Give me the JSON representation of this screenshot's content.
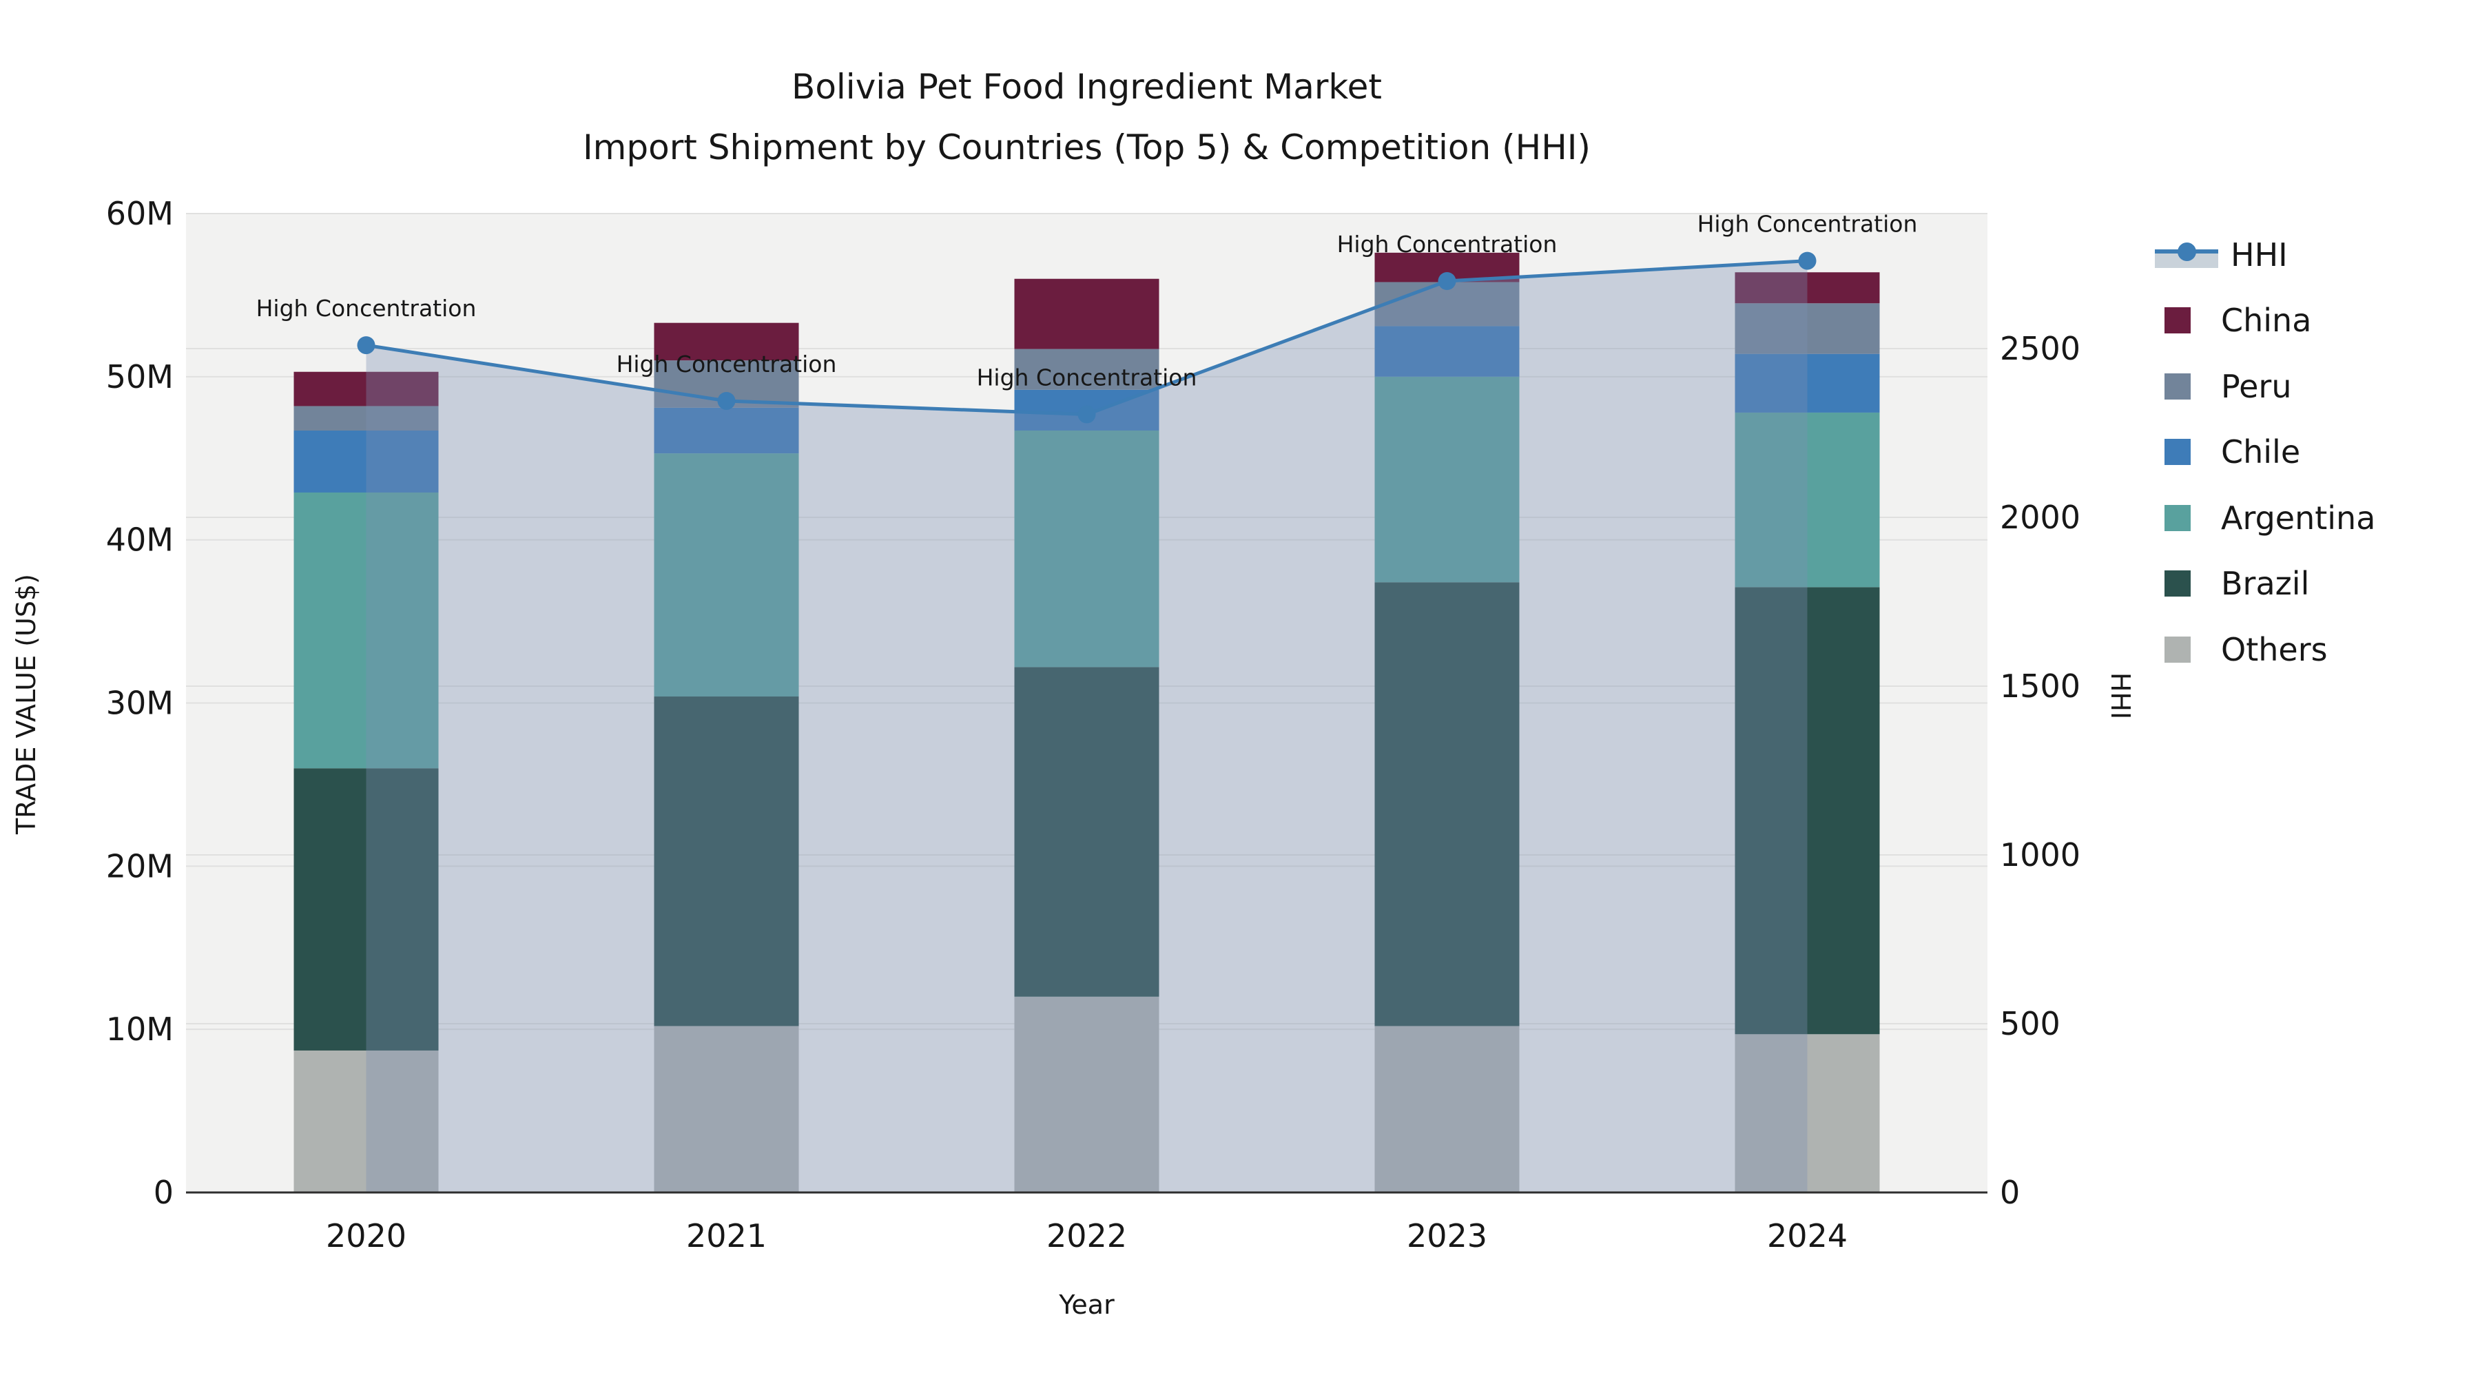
{
  "title": {
    "line1": "Bolivia Pet Food Ingredient Market",
    "line2": "Import Shipment by Countries (Top 5) & Competition (HHI)"
  },
  "axes": {
    "left_title": "TRADE VALUE (US$)",
    "left_tick_labels": [
      "0",
      "10M",
      "20M",
      "30M",
      "40M",
      "50M",
      "60M"
    ],
    "left_tick_values_musd": [
      0,
      10,
      20,
      30,
      40,
      50,
      60
    ],
    "left_max_musd": 60,
    "right_title": "HHI",
    "right_tick_labels": [
      "0",
      "500",
      "1000",
      "1500",
      "2000",
      "2500"
    ],
    "right_tick_values": [
      0,
      500,
      1000,
      1500,
      2000,
      2500
    ],
    "right_max": 2900,
    "x_title": "Year"
  },
  "annotation_label": "High Concentration",
  "legend": [
    {
      "label": "HHI",
      "type": "line",
      "color": "#3D7DB5",
      "band_color": "#C9D2DA"
    },
    {
      "label": "China",
      "type": "square",
      "color": "#6B1D3F"
    },
    {
      "label": "Peru",
      "type": "square",
      "color": "#72849A"
    },
    {
      "label": "Chile",
      "type": "square",
      "color": "#3E7CB8"
    },
    {
      "label": "Argentina",
      "type": "square",
      "color": "#59A19E"
    },
    {
      "label": "Brazil",
      "type": "square",
      "color": "#2B514D"
    },
    {
      "label": "Others",
      "type": "square",
      "color": "#AFB3B1"
    }
  ],
  "colors": {
    "plot_bg": "#F2F2F1",
    "grid": "#E0E0DF",
    "axis_spine": "#2E2E2E",
    "hhi_line": "#3D7DB5",
    "hhi_fill_rgba": "rgba(124,144,177,0.35)",
    "text": "#171717"
  },
  "chart_data": {
    "type": "bar",
    "subtype": "stacked-bars-with-line-overlay",
    "categories": [
      "2020",
      "2021",
      "2022",
      "2023",
      "2024"
    ],
    "stack_order_bottom_to_top": [
      "Others",
      "Brazil",
      "Argentina",
      "Chile",
      "Peru",
      "China"
    ],
    "series": [
      {
        "name": "China",
        "color": "#6B1D3F",
        "values_musd": [
          2.1,
          2.3,
          4.3,
          1.8,
          1.9
        ]
      },
      {
        "name": "Peru",
        "color": "#72849A",
        "values_musd": [
          1.5,
          2.9,
          2.5,
          2.7,
          3.1
        ]
      },
      {
        "name": "Chile",
        "color": "#3E7CB8",
        "values_musd": [
          3.8,
          2.8,
          2.5,
          3.1,
          3.6
        ]
      },
      {
        "name": "Argentina",
        "color": "#59A19E",
        "values_musd": [
          16.9,
          14.9,
          14.5,
          12.6,
          10.7
        ]
      },
      {
        "name": "Brazil",
        "color": "#2B514D",
        "values_musd": [
          17.3,
          20.2,
          20.2,
          27.2,
          27.4
        ]
      },
      {
        "name": "Others",
        "color": "#AFB3B1",
        "values_musd": [
          8.7,
          10.2,
          12.0,
          10.2,
          9.7
        ]
      }
    ],
    "bar_totals_musd": [
      50.3,
      53.3,
      56.0,
      57.6,
      56.4
    ],
    "line_series": {
      "name": "HHI",
      "color": "#3D7DB5",
      "values": [
        2510,
        2345,
        2305,
        2700,
        2760
      ],
      "area_fill": true,
      "annotations": [
        "High Concentration",
        "High Concentration",
        "High Concentration",
        "High Concentration",
        "High Concentration"
      ]
    },
    "xlabel": "Year",
    "ylabel_left": "TRADE VALUE (US$)",
    "ylabel_right": "HHI",
    "ylim_left_musd": [
      0,
      60
    ],
    "ylim_right": [
      0,
      2900
    ],
    "grid": true,
    "legend_position": "right"
  }
}
